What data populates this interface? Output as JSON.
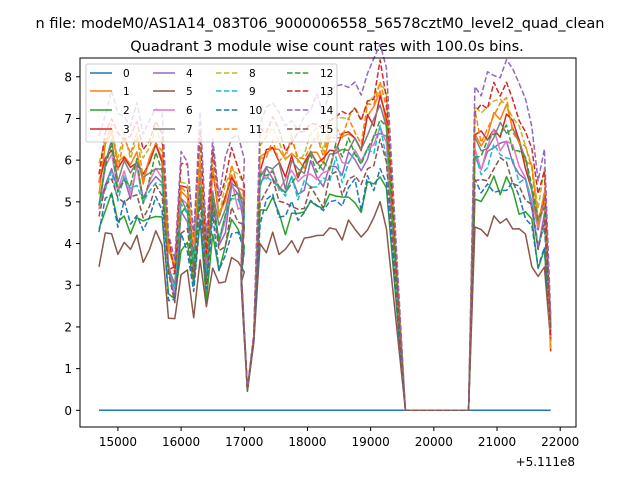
{
  "chart_data": {
    "type": "line",
    "suptitle": "n file: modeM0/AS1A14_083T06_9000006558_56578cztM0_level2_quad_clean",
    "title": "Quadrant 3 module wise count rates with 100.0s bins.",
    "xlabel": "",
    "ylabel": "",
    "x_offset_label": "+5.111e8",
    "xlim": [
      14400,
      22250
    ],
    "ylim": [
      -0.4,
      8.45
    ],
    "xticks": [
      15000,
      16000,
      17000,
      18000,
      19000,
      20000,
      21000,
      22000
    ],
    "xtick_labels": [
      "15000",
      "16000",
      "17000",
      "18000",
      "19000",
      "20000",
      "21000",
      "22000"
    ],
    "yticks": [
      0,
      1,
      2,
      3,
      4,
      5,
      6,
      7,
      8
    ],
    "ytick_labels": [
      "0",
      "1",
      "2",
      "3",
      "4",
      "5",
      "6",
      "7",
      "8"
    ],
    "legend": {
      "location": "top-left",
      "columns": 4
    },
    "segment1": {
      "x_start": 14700,
      "x_step": 100,
      "count": 24
    },
    "dip": {
      "x": [
        16950,
        17050,
        17150
      ],
      "values": [
        3.0,
        0.45,
        1.6
      ]
    },
    "segment2": {
      "x_start": 17250,
      "x_step": 100,
      "count": 21
    },
    "gap": {
      "x": [
        19550,
        20550
      ]
    },
    "segment3": {
      "x_start": 20650,
      "x_step": 100,
      "count": 13
    },
    "series": [
      {
        "name": "0",
        "color": "#1f77b4",
        "dash": "solid",
        "level": 0
      },
      {
        "name": "1",
        "color": "#ff7f0e",
        "dash": "solid",
        "level": 5.9
      },
      {
        "name": "2",
        "color": "#2ca02c",
        "dash": "solid",
        "level": 4.5
      },
      {
        "name": "3",
        "color": "#d62728",
        "dash": "solid",
        "level": 5.8
      },
      {
        "name": "4",
        "color": "#9467bd",
        "dash": "solid",
        "level": 5.3
      },
      {
        "name": "5",
        "color": "#8c564b",
        "dash": "solid",
        "level": 3.8
      },
      {
        "name": "6",
        "color": "#e377c2",
        "dash": "solid",
        "level": 5.4
      },
      {
        "name": "7",
        "color": "#7f7f7f",
        "dash": "solid",
        "level": 5.6
      },
      {
        "name": "8",
        "color": "#bcbd22",
        "dash": "dashed",
        "level": 6.2
      },
      {
        "name": "9",
        "color": "#17becf",
        "dash": "dashed",
        "level": 5.2
      },
      {
        "name": "10",
        "color": "#1f77b4",
        "dash": "dashed",
        "level": 4.6
      },
      {
        "name": "11",
        "color": "#ff7f0e",
        "dash": "dashed",
        "level": 6.0
      },
      {
        "name": "12",
        "color": "#2ca02c",
        "dash": "dashed",
        "level": 5.5
      },
      {
        "name": "13",
        "color": "#d62728",
        "dash": "dashed",
        "level": 6.4
      },
      {
        "name": "14",
        "color": "#9467bd",
        "dash": "dashed",
        "level": 6.9
      },
      {
        "name": "15",
        "color": "#8c564b",
        "dash": "dashed",
        "level": 4.9
      }
    ]
  }
}
